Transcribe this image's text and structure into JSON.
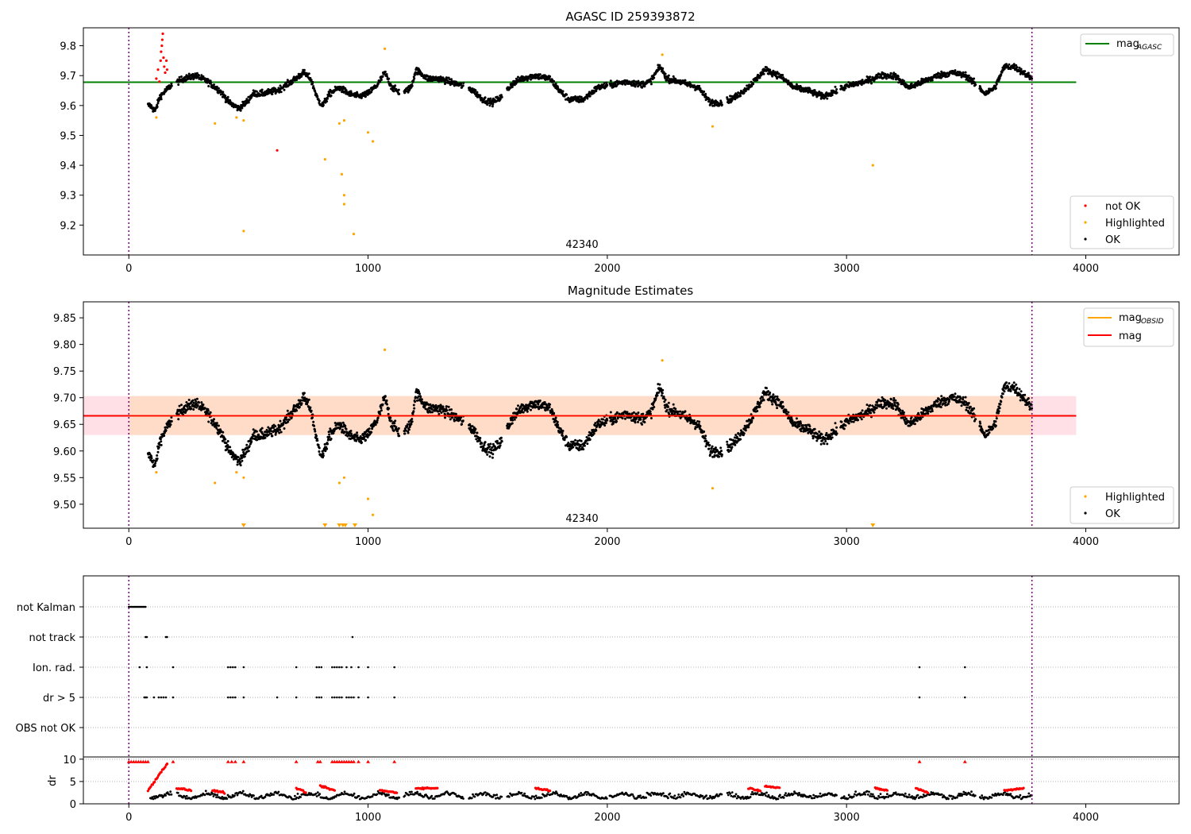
{
  "chart_data": [
    {
      "type": "scatter",
      "title": "AGASC ID 259393872",
      "xlim": [
        -190,
        4390
      ],
      "ylim": [
        9.1,
        9.86
      ],
      "xticks": [
        0,
        1000,
        2000,
        3000,
        4000
      ],
      "yticks": [
        9.2,
        9.3,
        9.4,
        9.5,
        9.6,
        9.7,
        9.8
      ],
      "vlines": [
        0,
        3775
      ],
      "annotation": {
        "text": "42340",
        "x": 1880,
        "y": 9.1
      },
      "hline": {
        "name": "mag_AGASC",
        "value": 9.678,
        "x_range": [
          -190,
          3960
        ],
        "color": "#008000"
      },
      "legend_lines": {
        "name": "mag",
        "sub": "AGASC"
      },
      "legend_points": [
        "not OK",
        "Highlighted",
        "OK"
      ],
      "colors": {
        "ok": "#000000",
        "highlighted": "#ffa500",
        "not_ok": "#ff0000"
      },
      "not_ok_points": [
        [
          115,
          9.69
        ],
        [
          122,
          9.72
        ],
        [
          128,
          9.68
        ],
        [
          133,
          9.75
        ],
        [
          135,
          9.78
        ],
        [
          138,
          9.8
        ],
        [
          140,
          9.82
        ],
        [
          142,
          9.84
        ],
        [
          145,
          9.76
        ],
        [
          148,
          9.73
        ],
        [
          152,
          9.71
        ],
        [
          157,
          9.75
        ],
        [
          160,
          9.72
        ],
        [
          620,
          9.45
        ]
      ],
      "highlighted_points": [
        [
          115,
          9.56
        ],
        [
          360,
          9.54
        ],
        [
          450,
          9.56
        ],
        [
          480,
          9.55
        ],
        [
          480,
          9.18
        ],
        [
          820,
          9.42
        ],
        [
          880,
          9.54
        ],
        [
          890,
          9.37
        ],
        [
          900,
          9.55
        ],
        [
          900,
          9.3
        ],
        [
          900,
          9.27
        ],
        [
          940,
          9.17
        ],
        [
          1000,
          9.51
        ],
        [
          1020,
          9.48
        ],
        [
          1070,
          9.79
        ],
        [
          2230,
          9.77
        ],
        [
          2440,
          9.53
        ],
        [
          3110,
          9.4
        ]
      ],
      "ok_base": 9.675,
      "ok_x_range": [
        80,
        3775
      ],
      "ok_profile": [
        [
          90,
          9.6
        ],
        [
          110,
          9.58
        ],
        [
          130,
          9.63
        ],
        [
          180,
          9.67
        ],
        [
          230,
          9.69
        ],
        [
          280,
          9.7
        ],
        [
          330,
          9.68
        ],
        [
          380,
          9.65
        ],
        [
          420,
          9.61
        ],
        [
          460,
          9.59
        ],
        [
          490,
          9.61
        ],
        [
          520,
          9.64
        ],
        [
          560,
          9.64
        ],
        [
          620,
          9.65
        ],
        [
          680,
          9.68
        ],
        [
          730,
          9.71
        ],
        [
          760,
          9.69
        ],
        [
          790,
          9.62
        ],
        [
          810,
          9.6
        ],
        [
          840,
          9.64
        ],
        [
          880,
          9.66
        ],
        [
          920,
          9.64
        ],
        [
          960,
          9.63
        ],
        [
          1000,
          9.64
        ],
        [
          1040,
          9.67
        ],
        [
          1070,
          9.71
        ],
        [
          1100,
          9.66
        ],
        [
          1140,
          9.64
        ],
        [
          1180,
          9.66
        ],
        [
          1200,
          9.72
        ],
        [
          1250,
          9.69
        ],
        [
          1300,
          9.69
        ],
        [
          1380,
          9.67
        ],
        [
          1440,
          9.65
        ],
        [
          1480,
          9.62
        ],
        [
          1520,
          9.61
        ],
        [
          1560,
          9.63
        ],
        [
          1600,
          9.67
        ],
        [
          1640,
          9.69
        ],
        [
          1700,
          9.7
        ],
        [
          1760,
          9.69
        ],
        [
          1800,
          9.65
        ],
        [
          1840,
          9.62
        ],
        [
          1900,
          9.62
        ],
        [
          1960,
          9.66
        ],
        [
          2020,
          9.67
        ],
        [
          2080,
          9.68
        ],
        [
          2140,
          9.67
        ],
        [
          2180,
          9.68
        ],
        [
          2220,
          9.73
        ],
        [
          2250,
          9.69
        ],
        [
          2300,
          9.68
        ],
        [
          2380,
          9.66
        ],
        [
          2430,
          9.61
        ],
        [
          2480,
          9.61
        ],
        [
          2540,
          9.63
        ],
        [
          2600,
          9.67
        ],
        [
          2660,
          9.72
        ],
        [
          2720,
          9.7
        ],
        [
          2780,
          9.66
        ],
        [
          2840,
          9.65
        ],
        [
          2900,
          9.63
        ],
        [
          2960,
          9.65
        ],
        [
          3020,
          9.67
        ],
        [
          3080,
          9.68
        ],
        [
          3140,
          9.7
        ],
        [
          3200,
          9.7
        ],
        [
          3260,
          9.66
        ],
        [
          3320,
          9.68
        ],
        [
          3380,
          9.7
        ],
        [
          3440,
          9.71
        ],
        [
          3500,
          9.7
        ],
        [
          3540,
          9.67
        ],
        [
          3580,
          9.64
        ],
        [
          3620,
          9.66
        ],
        [
          3660,
          9.73
        ],
        [
          3700,
          9.73
        ],
        [
          3740,
          9.71
        ],
        [
          3775,
          9.69
        ]
      ]
    },
    {
      "type": "scatter",
      "title": "Magnitude Estimates",
      "xlim": [
        -190,
        4390
      ],
      "ylim": [
        9.455,
        9.88
      ],
      "xticks": [
        0,
        1000,
        2000,
        3000,
        4000
      ],
      "yticks": [
        9.5,
        9.55,
        9.6,
        9.65,
        9.7,
        9.75,
        9.8,
        9.85
      ],
      "vlines": [
        0,
        3775
      ],
      "annotation": {
        "text": "42340",
        "x": 1880,
        "y": 9.455
      },
      "mag_line": {
        "name": "mag",
        "value": 9.666,
        "color": "#ff0000"
      },
      "mag_obsid_line": {
        "name": "mag_OBSID",
        "color": "#ffa500"
      },
      "band_outer": {
        "range": [
          9.63,
          9.703
        ],
        "x_range": [
          -190,
          3960
        ],
        "color": "#ffe0e6"
      },
      "band_inner": {
        "range": [
          9.63,
          9.703
        ],
        "x_range": [
          0,
          3775
        ],
        "color": "#ffdcc8"
      },
      "legend_lines": [
        {
          "name": "mag",
          "sub": "OBSID",
          "color": "#ffa500"
        },
        {
          "name": "mag",
          "sub": "",
          "color": "#ff0000"
        }
      ],
      "legend_points": [
        "Highlighted",
        "OK"
      ],
      "colors": {
        "ok": "#000000",
        "highlighted": "#ffa500"
      },
      "highlighted_points": [
        [
          115,
          9.56
        ],
        [
          360,
          9.54
        ],
        [
          450,
          9.56
        ],
        [
          480,
          9.55
        ],
        [
          880,
          9.54
        ],
        [
          900,
          9.55
        ],
        [
          1000,
          9.51
        ],
        [
          1020,
          9.48
        ],
        [
          1070,
          9.79
        ],
        [
          2230,
          9.77
        ],
        [
          2440,
          9.53
        ]
      ],
      "below_range_markers": [
        480,
        820,
        880,
        895,
        905,
        945,
        3110
      ]
    },
    {
      "type": "scatter",
      "title": "",
      "xlim": [
        -190,
        4390
      ],
      "xticks": [
        0,
        1000,
        2000,
        3000,
        4000
      ],
      "vlines": [
        0,
        3775
      ],
      "categories": [
        "not Kalman",
        "not track",
        "Ion. rad.",
        "dr > 5",
        "OBS not OK"
      ],
      "flag_points": {
        "not Kalman": [
          0,
          5,
          10,
          15,
          20,
          25,
          30,
          35,
          40,
          45,
          50,
          55,
          60,
          65,
          70
        ],
        "not track": [
          70,
          75,
          155,
          160,
          935
        ],
        "Ion. rad.": [
          45,
          75,
          185,
          415,
          425,
          435,
          445,
          480,
          700,
          785,
          795,
          805,
          850,
          860,
          870,
          880,
          890,
          910,
          930,
          960,
          1000,
          1110,
          3305,
          3495
        ],
        "dr > 5": [
          65,
          70,
          75,
          105,
          125,
          135,
          145,
          155,
          185,
          415,
          425,
          435,
          445,
          480,
          620,
          700,
          785,
          795,
          805,
          850,
          860,
          870,
          880,
          890,
          910,
          920,
          930,
          940,
          960,
          1000,
          1110,
          3305,
          3495
        ],
        "OBS not OK": []
      },
      "dr_ylabel": "dr",
      "dr_ylim": [
        0,
        10.5
      ],
      "dr_yticks": [
        0,
        5,
        10
      ],
      "dr_red_clipped_x": [
        0,
        10,
        20,
        30,
        40,
        50,
        60,
        70,
        80,
        185,
        415,
        430,
        445,
        480,
        700,
        790,
        800,
        850,
        860,
        870,
        880,
        890,
        900,
        910,
        920,
        930,
        940,
        960,
        1000,
        1110,
        3305,
        3495
      ],
      "dr_red_segments": [
        [
          80,
          3.0,
          160,
          9.0
        ],
        [
          200,
          3.5,
          260,
          3.0
        ],
        [
          350,
          3.0,
          400,
          2.5
        ],
        [
          700,
          3.5,
          740,
          2.5
        ],
        [
          800,
          4.0,
          860,
          3.0
        ],
        [
          1050,
          3.0,
          1120,
          2.5
        ],
        [
          1200,
          3.5,
          1290,
          3.5
        ],
        [
          1700,
          3.5,
          1760,
          3.0
        ],
        [
          2590,
          3.5,
          2640,
          3.0
        ],
        [
          2660,
          4.0,
          2720,
          3.5
        ],
        [
          3120,
          3.5,
          3170,
          3.0
        ],
        [
          3290,
          3.5,
          3340,
          2.5
        ],
        [
          3660,
          3.0,
          3740,
          3.5
        ]
      ],
      "colors": {
        "black": "#000000",
        "red": "#ff0000"
      }
    }
  ]
}
